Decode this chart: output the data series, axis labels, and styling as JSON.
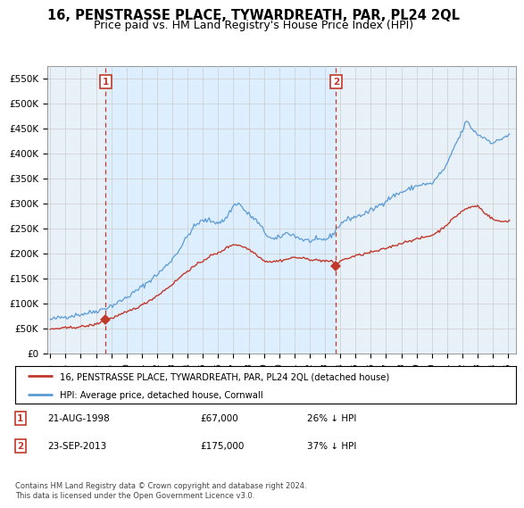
{
  "title": "16, PENSTRASSE PLACE, TYWARDREATH, PAR, PL24 2QL",
  "subtitle": "Price paid vs. HM Land Registry's House Price Index (HPI)",
  "title_fontsize": 10.5,
  "subtitle_fontsize": 9,
  "ylabel_ticks": [
    "£0",
    "£50K",
    "£100K",
    "£150K",
    "£200K",
    "£250K",
    "£300K",
    "£350K",
    "£400K",
    "£450K",
    "£500K",
    "£550K"
  ],
  "ytick_values": [
    0,
    50000,
    100000,
    150000,
    200000,
    250000,
    300000,
    350000,
    400000,
    450000,
    500000,
    550000
  ],
  "ylim": [
    0,
    575000
  ],
  "xlim_start": 1994.8,
  "xlim_end": 2025.5,
  "xticks": [
    1995,
    1996,
    1997,
    1998,
    1999,
    2000,
    2001,
    2002,
    2003,
    2004,
    2005,
    2006,
    2007,
    2008,
    2009,
    2010,
    2011,
    2012,
    2013,
    2014,
    2015,
    2016,
    2017,
    2018,
    2019,
    2020,
    2021,
    2022,
    2023,
    2024,
    2025
  ],
  "hpi_color": "#5b9bd5",
  "price_color": "#c0392b",
  "grid_color": "#cccccc",
  "background_color": "#ffffff",
  "plot_bg_color": "#e8f0f8",
  "shade_color": "#ddeeff",
  "legend_label_red": "16, PENSTRASSE PLACE, TYWARDREATH, PAR, PL24 2QL (detached house)",
  "legend_label_blue": "HPI: Average price, detached house, Cornwall",
  "annotation1_label": "1",
  "annotation1_date": "21-AUG-1998",
  "annotation1_price": "£67,000",
  "annotation1_hpi": "26% ↓ HPI",
  "annotation1_year": 1998.63,
  "annotation1_value": 67000,
  "annotation2_label": "2",
  "annotation2_date": "23-SEP-2013",
  "annotation2_price": "£175,000",
  "annotation2_hpi": "37% ↓ HPI",
  "annotation2_year": 2013.72,
  "annotation2_value": 175000,
  "footer": "Contains HM Land Registry data © Crown copyright and database right 2024.\nThis data is licensed under the Open Government Licence v3.0."
}
